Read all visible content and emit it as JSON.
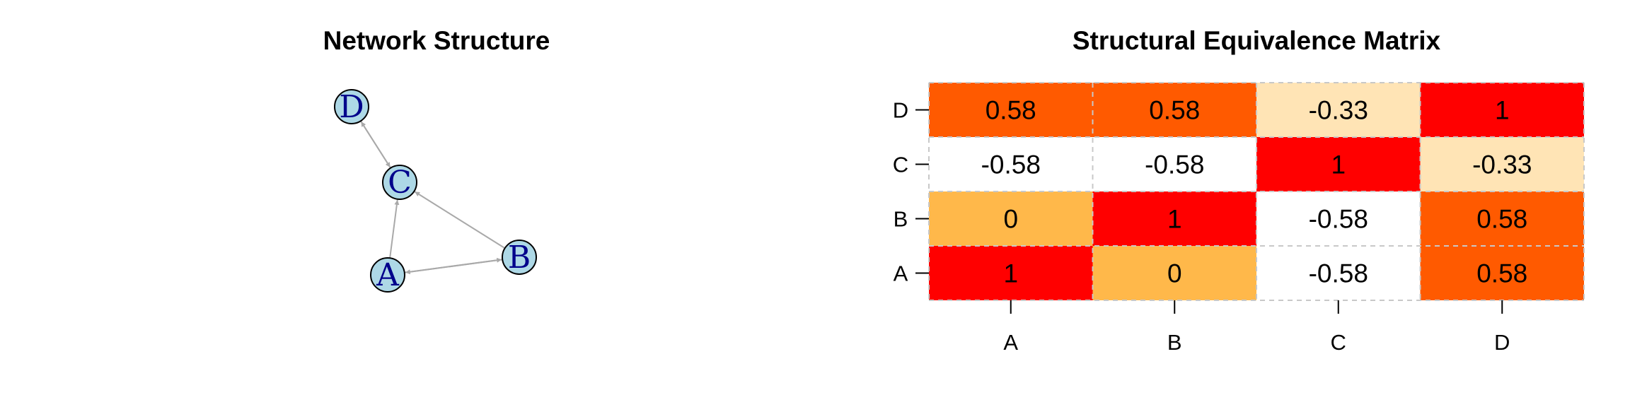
{
  "chart_data": [
    {
      "type": "network",
      "title": "Network Structure",
      "nodes": [
        "A",
        "B",
        "C",
        "D"
      ],
      "edges": [
        {
          "from": "A",
          "to": "B"
        },
        {
          "from": "B",
          "to": "A"
        },
        {
          "from": "A",
          "to": "C"
        },
        {
          "from": "B",
          "to": "C"
        },
        {
          "from": "C",
          "to": "D"
        },
        {
          "from": "D",
          "to": "C"
        }
      ],
      "colors": {
        "node_fill": "#add8e6",
        "node_label": "#00008b",
        "edge": "#a9a9a9"
      }
    },
    {
      "type": "heatmap",
      "title": "Structural Equivalence Matrix",
      "x_categories": [
        "A",
        "B",
        "C",
        "D"
      ],
      "y_categories": [
        "A",
        "B",
        "C",
        "D"
      ],
      "values": [
        [
          1,
          0,
          -0.58,
          0.58
        ],
        [
          0,
          1,
          -0.58,
          0.58
        ],
        [
          -0.58,
          -0.58,
          1,
          -0.33
        ],
        [
          0.58,
          0.58,
          -0.33,
          1
        ]
      ],
      "cell_labels": [
        [
          "1",
          "0",
          "-0.58",
          "0.58"
        ],
        [
          "0",
          "1",
          "-0.58",
          "0.58"
        ],
        [
          "-0.58",
          "-0.58",
          "1",
          "-0.33"
        ],
        [
          "0.58",
          "0.58",
          "-0.33",
          "1"
        ]
      ],
      "grid": true,
      "colors": {
        "-0.58": "#ffffff",
        "-0.33": "#ffe4b5",
        "0": "#ffb84a",
        "0.58": "#ff5a00",
        "1": "#ff0000",
        "grid": "#c8c8c8"
      }
    }
  ]
}
